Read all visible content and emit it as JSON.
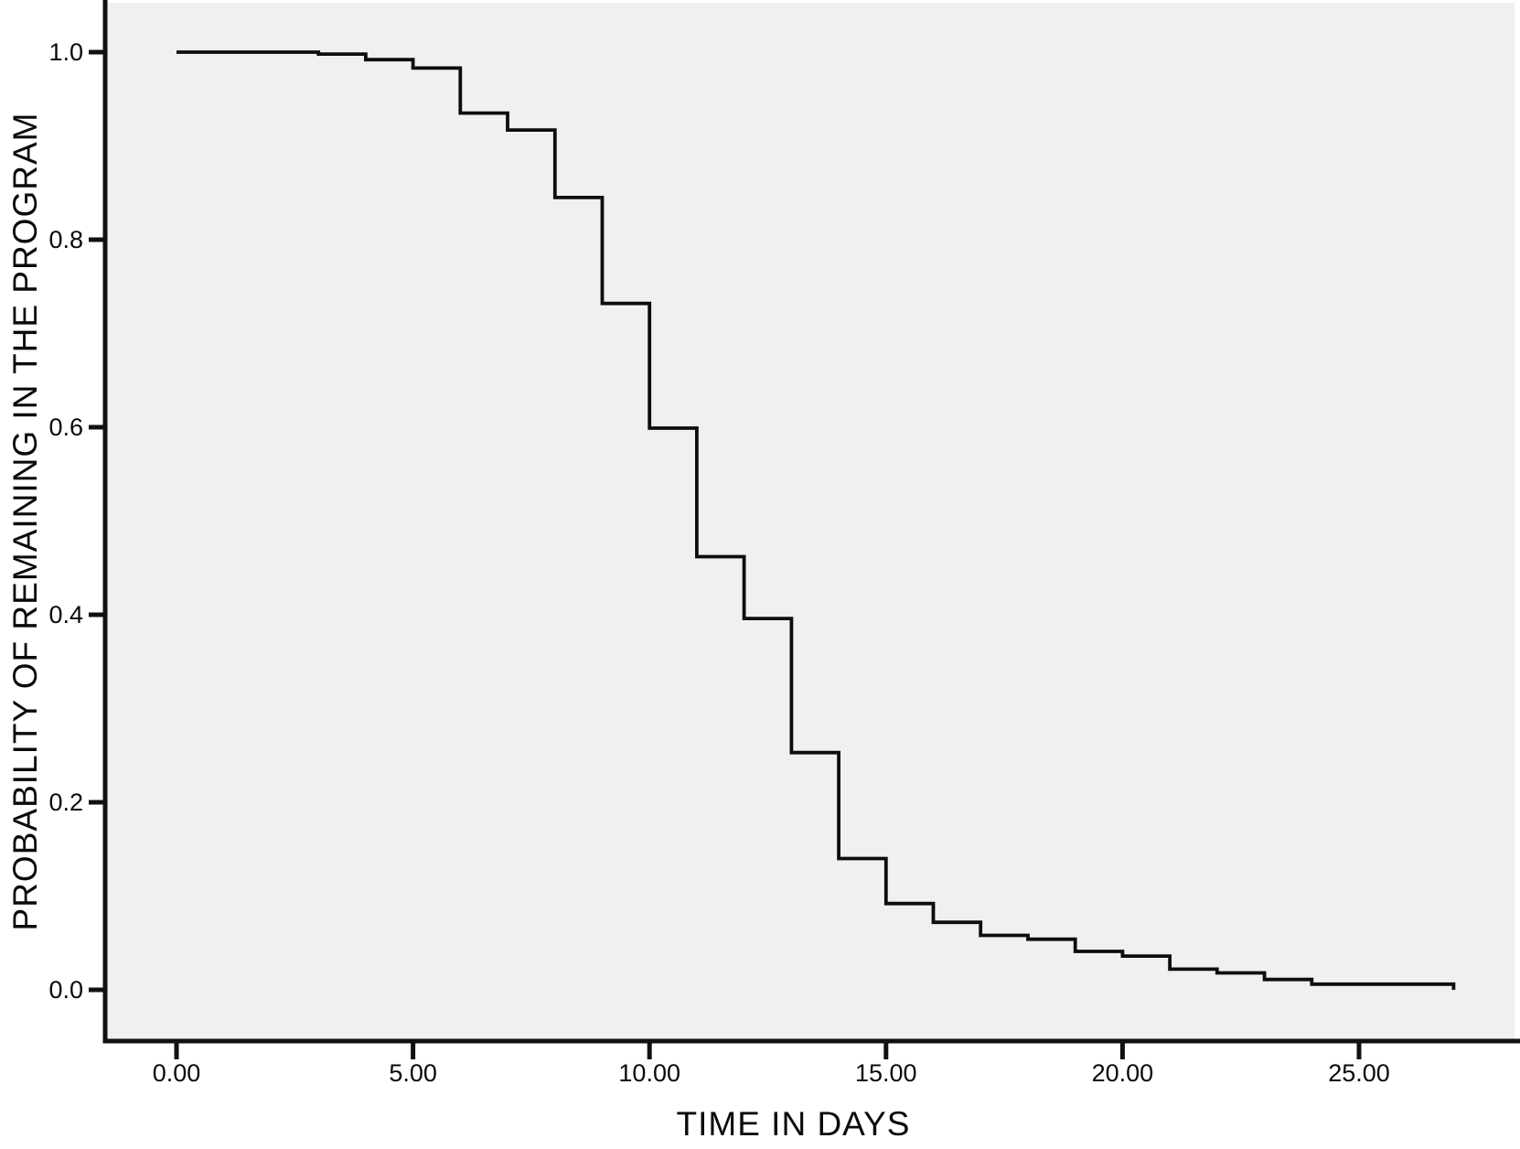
{
  "chart_data": {
    "type": "line",
    "subtype": "kaplan_meier_step",
    "title": "",
    "xlabel": "TIME IN DAYS",
    "ylabel": "PROBABILITY OF REMAINING IN THE PROGRAM",
    "xlim": [
      -1.5,
      28.3
    ],
    "ylim": [
      -0.055,
      1.053
    ],
    "grid": false,
    "legend": false,
    "plot_bg_color": "#f0f0ee",
    "curve_color": "#0d0d0d",
    "axis_color": "#111111",
    "x_ticks": [
      {
        "value": 0,
        "label": "0.00"
      },
      {
        "value": 5,
        "label": "5.00"
      },
      {
        "value": 10,
        "label": "10.00"
      },
      {
        "value": 15,
        "label": "15.00"
      },
      {
        "value": 20,
        "label": "20.00"
      },
      {
        "value": 25,
        "label": "25.00"
      }
    ],
    "y_ticks": [
      {
        "value": 0.0,
        "label": "0.0"
      },
      {
        "value": 0.2,
        "label": "0.2"
      },
      {
        "value": 0.4,
        "label": "0.4"
      },
      {
        "value": 0.6,
        "label": "0.6"
      },
      {
        "value": 0.8,
        "label": "0.8"
      },
      {
        "value": 1.0,
        "label": "1.0"
      }
    ],
    "series": [
      {
        "name": "survival_probability",
        "start": {
          "time": 0,
          "probability": 1.0
        },
        "steps": [
          {
            "time": 3,
            "probability": 0.998
          },
          {
            "time": 4,
            "probability": 0.992
          },
          {
            "time": 5,
            "probability": 0.983
          },
          {
            "time": 6,
            "probability": 0.935
          },
          {
            "time": 7,
            "probability": 0.917
          },
          {
            "time": 8,
            "probability": 0.845
          },
          {
            "time": 9,
            "probability": 0.732
          },
          {
            "time": 10,
            "probability": 0.599
          },
          {
            "time": 11,
            "probability": 0.462
          },
          {
            "time": 12,
            "probability": 0.396
          },
          {
            "time": 13,
            "probability": 0.253
          },
          {
            "time": 14,
            "probability": 0.14
          },
          {
            "time": 15,
            "probability": 0.092
          },
          {
            "time": 16,
            "probability": 0.072
          },
          {
            "time": 17,
            "probability": 0.058
          },
          {
            "time": 18,
            "probability": 0.054
          },
          {
            "time": 19,
            "probability": 0.041
          },
          {
            "time": 20,
            "probability": 0.036
          },
          {
            "time": 21,
            "probability": 0.022
          },
          {
            "time": 22,
            "probability": 0.018
          },
          {
            "time": 23,
            "probability": 0.011
          },
          {
            "time": 24,
            "probability": 0.006
          },
          {
            "time": 27,
            "probability": 0.0
          }
        ]
      }
    ]
  }
}
